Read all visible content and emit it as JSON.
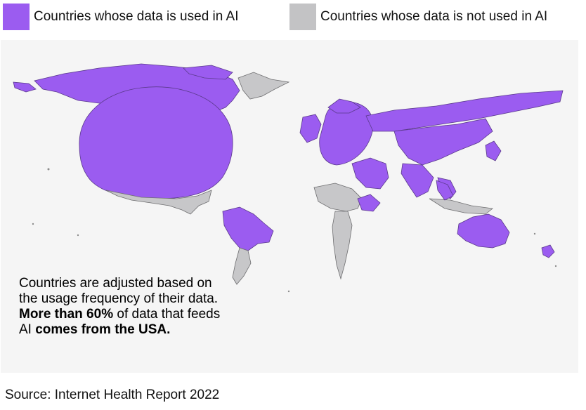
{
  "legend": {
    "used": {
      "label": "Countries whose data is used in AI",
      "color": "#9b5cf0"
    },
    "not_used": {
      "label": "Countries whose data is not used in AI",
      "color": "#c3c3c5"
    }
  },
  "caption": {
    "part1": "Countries are adjusted based on the usage frequency of their data.",
    "part2_bold": "More than 60%",
    "part3": "of data that feeds AI",
    "part4_bold": "comes from the USA."
  },
  "source": "Source: Internet Health Report 2022"
}
